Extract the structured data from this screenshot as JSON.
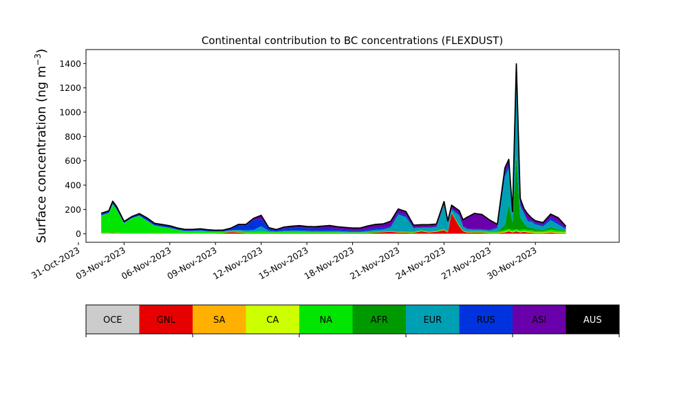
{
  "chart_data": {
    "type": "area",
    "stacked": true,
    "title": "Continental contribution to BC concentrations (FLEXDUST)",
    "ylabel": "Surface concentration (ng m",
    "ylabel_sup": "−3",
    "ylabel_close": ")",
    "xlabel": "",
    "ylim": [
      -70,
      1515
    ],
    "xlim": [
      "2023-10-31T12:00",
      "2023-12-05T12:00"
    ],
    "yticks": [
      0,
      200,
      400,
      600,
      800,
      1000,
      1200,
      1400
    ],
    "xticks": [
      {
        "date": "2023-10-31",
        "label": "31-Oct-2023"
      },
      {
        "date": "2023-11-03",
        "label": "03-Nov-2023"
      },
      {
        "date": "2023-11-06",
        "label": "06-Nov-2023"
      },
      {
        "date": "2023-11-09",
        "label": "09-Nov-2023"
      },
      {
        "date": "2023-11-12",
        "label": "12-Nov-2023"
      },
      {
        "date": "2023-11-15",
        "label": "15-Nov-2023"
      },
      {
        "date": "2023-11-18",
        "label": "18-Nov-2023"
      },
      {
        "date": "2023-11-21",
        "label": "21-Nov-2023"
      },
      {
        "date": "2023-11-24",
        "label": "24-Nov-2023"
      },
      {
        "date": "2023-11-27",
        "label": "27-Nov-2023"
      },
      {
        "date": "2023-11-30",
        "label": "30-Nov-2023"
      }
    ],
    "grid": false,
    "legend": {
      "placement": "bottom-colorbar"
    },
    "x": [
      "2023-11-01T12:00",
      "2023-11-02T00:00",
      "2023-11-02T06:00",
      "2023-11-02T12:00",
      "2023-11-03T00:00",
      "2023-11-03T12:00",
      "2023-11-04T00:00",
      "2023-11-04T12:00",
      "2023-11-05T00:00",
      "2023-11-05T12:00",
      "2023-11-06T00:00",
      "2023-11-06T12:00",
      "2023-11-07T00:00",
      "2023-11-07T12:00",
      "2023-11-08T00:00",
      "2023-11-08T12:00",
      "2023-11-09T00:00",
      "2023-11-09T12:00",
      "2023-11-10T00:00",
      "2023-11-10T12:00",
      "2023-11-11T00:00",
      "2023-11-11T12:00",
      "2023-11-12T00:00",
      "2023-11-12T12:00",
      "2023-11-13T00:00",
      "2023-11-13T12:00",
      "2023-11-14T00:00",
      "2023-11-14T12:00",
      "2023-11-15T00:00",
      "2023-11-15T12:00",
      "2023-11-16T00:00",
      "2023-11-16T12:00",
      "2023-11-17T00:00",
      "2023-11-17T12:00",
      "2023-11-18T00:00",
      "2023-11-18T12:00",
      "2023-11-19T00:00",
      "2023-11-19T12:00",
      "2023-11-20T00:00",
      "2023-11-20T12:00",
      "2023-11-21T00:00",
      "2023-11-21T12:00",
      "2023-11-22T00:00",
      "2023-11-22T12:00",
      "2023-11-23T00:00",
      "2023-11-23T12:00",
      "2023-11-24T00:00",
      "2023-11-24T06:00",
      "2023-11-24T12:00",
      "2023-11-25T00:00",
      "2023-11-25T06:00",
      "2023-11-25T12:00",
      "2023-11-26T00:00",
      "2023-11-26T12:00",
      "2023-11-27T00:00",
      "2023-11-27T12:00",
      "2023-11-28T00:00",
      "2023-11-28T06:00",
      "2023-11-28T12:00",
      "2023-11-28T18:00",
      "2023-11-29T00:00",
      "2023-11-29T06:00",
      "2023-11-29T12:00",
      "2023-11-29T18:00",
      "2023-11-30T00:00",
      "2023-11-30T12:00",
      "2023-12-01T00:00",
      "2023-12-01T12:00",
      "2023-12-02T00:00"
    ],
    "series": [
      {
        "name": "OCE",
        "color": "#cccccc",
        "values": [
          2,
          2,
          2,
          2,
          1,
          1,
          1,
          1,
          1,
          1,
          1,
          1,
          1,
          1,
          1,
          1,
          1,
          1,
          1,
          1,
          1,
          1,
          1,
          1,
          1,
          1,
          1,
          1,
          1,
          1,
          1,
          1,
          1,
          1,
          1,
          1,
          1,
          1,
          1,
          1,
          1,
          1,
          1,
          1,
          1,
          1,
          1,
          1,
          1,
          1,
          1,
          1,
          1,
          1,
          1,
          1,
          1,
          1,
          1,
          1,
          1,
          1,
          1,
          1,
          1,
          1,
          1,
          1,
          1
        ]
      },
      {
        "name": "GNL",
        "color": "#e60000",
        "values": [
          3,
          3,
          5,
          3,
          2,
          2,
          2,
          2,
          2,
          2,
          2,
          2,
          2,
          2,
          2,
          2,
          2,
          5,
          12,
          10,
          4,
          3,
          3,
          3,
          3,
          3,
          3,
          3,
          3,
          3,
          3,
          3,
          3,
          3,
          3,
          3,
          5,
          8,
          12,
          15,
          10,
          8,
          6,
          20,
          10,
          15,
          30,
          10,
          170,
          60,
          20,
          10,
          8,
          8,
          5,
          5,
          10,
          20,
          10,
          20,
          10,
          15,
          10,
          8,
          5,
          5,
          10,
          5,
          5
        ]
      },
      {
        "name": "SA",
        "color": "#ffb000",
        "values": [
          1,
          1,
          1,
          1,
          1,
          1,
          1,
          1,
          1,
          1,
          1,
          1,
          1,
          1,
          1,
          1,
          1,
          1,
          1,
          1,
          1,
          1,
          1,
          1,
          1,
          1,
          1,
          1,
          1,
          1,
          1,
          1,
          1,
          1,
          1,
          1,
          1,
          1,
          1,
          1,
          1,
          1,
          1,
          1,
          1,
          1,
          1,
          1,
          1,
          1,
          1,
          1,
          1,
          1,
          1,
          1,
          1,
          1,
          1,
          1,
          1,
          1,
          1,
          1,
          1,
          1,
          1,
          1,
          1
        ]
      },
      {
        "name": "CA",
        "color": "#ccff00",
        "values": [
          2,
          2,
          2,
          2,
          1,
          1,
          1,
          1,
          1,
          1,
          1,
          1,
          1,
          1,
          1,
          1,
          1,
          1,
          1,
          1,
          1,
          1,
          1,
          1,
          1,
          1,
          1,
          1,
          1,
          1,
          1,
          1,
          1,
          1,
          1,
          1,
          1,
          1,
          1,
          1,
          1,
          2,
          2,
          2,
          2,
          2,
          2,
          2,
          2,
          2,
          2,
          2,
          2,
          2,
          2,
          2,
          5,
          5,
          5,
          5,
          5,
          5,
          5,
          5,
          5,
          5,
          5,
          5,
          5
        ]
      },
      {
        "name": "NA",
        "color": "#00e600",
        "values": [
          140,
          160,
          230,
          190,
          80,
          120,
          140,
          100,
          60,
          50,
          40,
          25,
          15,
          15,
          18,
          12,
          10,
          8,
          8,
          10,
          10,
          10,
          15,
          8,
          8,
          10,
          10,
          10,
          8,
          8,
          8,
          8,
          8,
          5,
          5,
          5,
          5,
          5,
          5,
          5,
          5,
          5,
          5,
          5,
          5,
          5,
          5,
          5,
          5,
          5,
          5,
          5,
          10,
          10,
          8,
          8,
          15,
          15,
          15,
          10,
          15,
          15,
          15,
          15,
          10,
          10,
          20,
          15,
          10
        ]
      },
      {
        "name": "AFR",
        "color": "#009900",
        "values": [
          1,
          1,
          1,
          1,
          1,
          1,
          1,
          1,
          1,
          1,
          1,
          1,
          1,
          1,
          1,
          1,
          1,
          1,
          1,
          1,
          1,
          1,
          1,
          1,
          1,
          1,
          1,
          1,
          1,
          1,
          1,
          1,
          1,
          1,
          1,
          1,
          1,
          1,
          1,
          1,
          1,
          1,
          1,
          1,
          1,
          1,
          1,
          1,
          1,
          1,
          1,
          1,
          1,
          1,
          1,
          1,
          40,
          200,
          60,
          600,
          100,
          50,
          20,
          20,
          15,
          10,
          15,
          10,
          5
        ]
      },
      {
        "name": "EUR",
        "color": "#00a0b4",
        "values": [
          3,
          3,
          5,
          5,
          3,
          3,
          3,
          3,
          3,
          3,
          3,
          3,
          3,
          3,
          3,
          3,
          3,
          3,
          5,
          8,
          10,
          15,
          40,
          10,
          5,
          8,
          10,
          10,
          10,
          8,
          8,
          8,
          8,
          8,
          5,
          5,
          10,
          15,
          15,
          30,
          140,
          120,
          30,
          20,
          30,
          30,
          200,
          60,
          20,
          80,
          30,
          20,
          10,
          10,
          10,
          30,
          400,
          300,
          60,
          700,
          100,
          80,
          50,
          50,
          40,
          30,
          60,
          40,
          10
        ]
      },
      {
        "name": "RUS",
        "color": "#0033dd",
        "values": [
          15,
          15,
          20,
          20,
          10,
          10,
          15,
          20,
          15,
          15,
          15,
          12,
          10,
          10,
          12,
          10,
          8,
          8,
          15,
          40,
          40,
          80,
          60,
          20,
          10,
          20,
          20,
          25,
          20,
          20,
          20,
          20,
          15,
          12,
          10,
          10,
          15,
          15,
          15,
          10,
          15,
          15,
          5,
          5,
          5,
          5,
          5,
          5,
          10,
          10,
          5,
          5,
          5,
          5,
          5,
          10,
          30,
          30,
          10,
          30,
          20,
          10,
          10,
          10,
          10,
          10,
          20,
          15,
          5
        ]
      },
      {
        "name": "ASI",
        "color": "#6a00aa",
        "values": [
          2,
          2,
          2,
          2,
          2,
          2,
          2,
          2,
          2,
          2,
          2,
          2,
          2,
          2,
          2,
          2,
          2,
          2,
          2,
          5,
          10,
          15,
          30,
          5,
          5,
          10,
          15,
          15,
          15,
          15,
          20,
          25,
          20,
          20,
          20,
          20,
          25,
          30,
          30,
          40,
          30,
          30,
          20,
          20,
          20,
          20,
          20,
          20,
          25,
          30,
          50,
          90,
          130,
          120,
          80,
          20,
          40,
          40,
          20,
          30,
          40,
          30,
          50,
          20,
          20,
          20,
          30,
          40,
          20
        ]
      },
      {
        "name": "AUS",
        "color": "#000000",
        "values": [
          0,
          0,
          0,
          0,
          0,
          0,
          0,
          0,
          0,
          0,
          0,
          0,
          0,
          0,
          0,
          0,
          0,
          0,
          0,
          0,
          0,
          0,
          0,
          0,
          0,
          0,
          0,
          0,
          0,
          0,
          0,
          0,
          0,
          0,
          0,
          0,
          0,
          0,
          0,
          0,
          0,
          0,
          0,
          0,
          0,
          0,
          0,
          0,
          0,
          0,
          0,
          0,
          0,
          0,
          0,
          0,
          0,
          0,
          0,
          0,
          0,
          0,
          0,
          0,
          0,
          0,
          0,
          0,
          0
        ]
      }
    ]
  }
}
